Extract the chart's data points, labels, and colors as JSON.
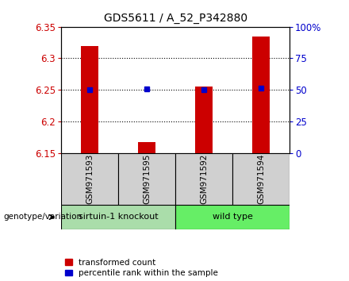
{
  "title": "GDS5611 / A_52_P342880",
  "samples": [
    "GSM971593",
    "GSM971595",
    "GSM971592",
    "GSM971594"
  ],
  "bar_values": [
    6.32,
    6.168,
    6.255,
    6.335
  ],
  "percentile_values": [
    6.25,
    6.252,
    6.25,
    6.253
  ],
  "bar_bottom": 6.15,
  "ylim": [
    6.15,
    6.35
  ],
  "yticks_left": [
    6.15,
    6.2,
    6.25,
    6.3,
    6.35
  ],
  "yticks_right": [
    0,
    25,
    50,
    75,
    100
  ],
  "yticks_right_vals": [
    6.15,
    6.2,
    6.25,
    6.3,
    6.35
  ],
  "bar_color": "#cc0000",
  "percentile_color": "#0000cc",
  "genotype_groups": [
    {
      "label": "sirtuin-1 knockout",
      "color": "#aaddaa"
    },
    {
      "label": "wild type",
      "color": "#66ee66"
    }
  ],
  "left_axis_color": "#cc0000",
  "right_axis_color": "#0000cc",
  "legend_red_label": "transformed count",
  "legend_blue_label": "percentile rank within the sample",
  "genotype_label": "genotype/variation",
  "sample_box_color": "#d0d0d0",
  "bar_width": 0.3
}
